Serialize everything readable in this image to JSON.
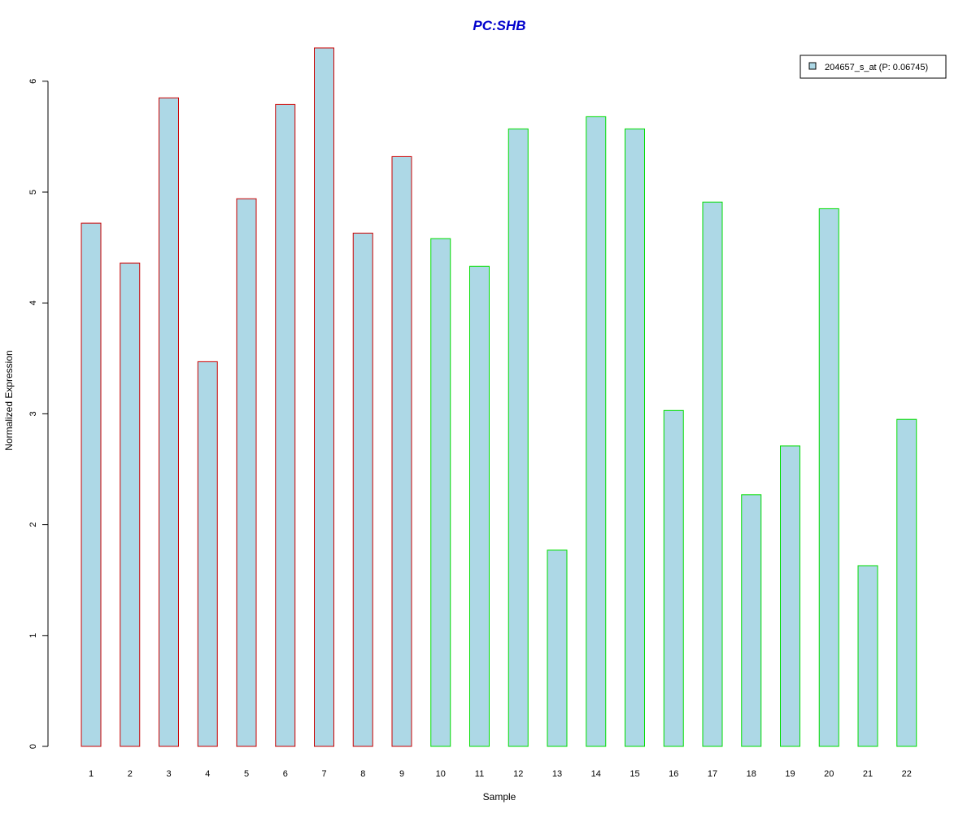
{
  "chart_data": {
    "type": "bar",
    "title": "PC:SHB",
    "xlabel": "Sample",
    "ylabel": "Normalized Expression",
    "categories": [
      "1",
      "2",
      "3",
      "4",
      "5",
      "6",
      "7",
      "8",
      "9",
      "10",
      "11",
      "12",
      "13",
      "14",
      "15",
      "16",
      "17",
      "18",
      "19",
      "20",
      "21",
      "22"
    ],
    "series": [
      {
        "name": "204657_s_at (P: 0.06745)",
        "values": [
          4.72,
          4.36,
          5.85,
          3.47,
          4.94,
          5.79,
          6.3,
          4.63,
          5.32,
          4.58,
          4.33,
          5.57,
          1.77,
          5.68,
          5.57,
          3.03,
          4.91,
          2.27,
          2.71,
          4.85,
          1.63,
          2.95
        ]
      }
    ],
    "group_colors": [
      "#cc0000",
      "#cc0000",
      "#cc0000",
      "#cc0000",
      "#cc0000",
      "#cc0000",
      "#cc0000",
      "#cc0000",
      "#cc0000",
      "#00dd00",
      "#00dd00",
      "#00dd00",
      "#00dd00",
      "#00dd00",
      "#00dd00",
      "#00dd00",
      "#00dd00",
      "#00dd00",
      "#00dd00",
      "#00dd00",
      "#00dd00",
      "#00dd00"
    ],
    "bar_fill": "#add8e6",
    "title_color": "#0000cc",
    "yticks": [
      0,
      1,
      2,
      3,
      4,
      5,
      6
    ],
    "ylim": [
      0,
      6.3
    ],
    "legend_position": "top-right",
    "grid": false
  }
}
